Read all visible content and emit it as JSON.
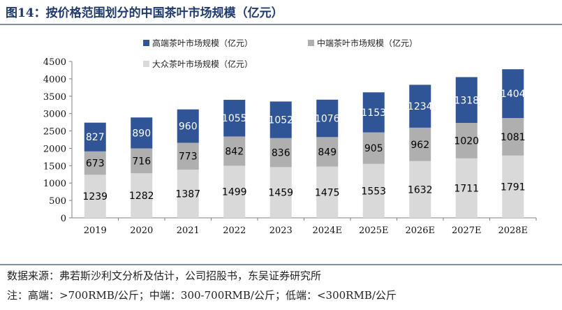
{
  "title": "图14：按价格范围划分的中国茶叶市场规模（亿元）",
  "source_note": "数据来源：弗若斯沙利文分析及估计，公司招股书，东吴证券研究所",
  "definition_note": "注：高端：>700RMB/公斤；中端：300-700RMB/公斤；低端：<300RMB/公斤",
  "chart_data": {
    "type": "bar",
    "stacked": true,
    "categories": [
      "2019",
      "2020",
      "2021",
      "2022",
      "2023",
      "2024E",
      "2025E",
      "2026E",
      "2027E",
      "2028E"
    ],
    "series": [
      {
        "name": "大众茶叶市场规模（亿元）",
        "color": "#d9d9d9",
        "label_color": "#000000",
        "values": [
          1239,
          1282,
          1387,
          1499,
          1459,
          1475,
          1553,
          1632,
          1711,
          1791
        ]
      },
      {
        "name": "中端茶叶市场规模（亿元）",
        "color": "#afafaf",
        "label_color": "#000000",
        "values": [
          673,
          716,
          773,
          842,
          836,
          849,
          905,
          962,
          1020,
          1081
        ]
      },
      {
        "name": "高端茶叶市场规模（亿元）",
        "color": "#2f5597",
        "label_color": "#ffffff",
        "values": [
          827,
          890,
          960,
          1055,
          1052,
          1076,
          1153,
          1234,
          1318,
          1404
        ]
      }
    ],
    "ylim": [
      0,
      4500
    ],
    "yticks": [
      0,
      500,
      1000,
      1500,
      2000,
      2500,
      3000,
      3500,
      4000,
      4500
    ],
    "grid": false,
    "legend_position": "top"
  }
}
